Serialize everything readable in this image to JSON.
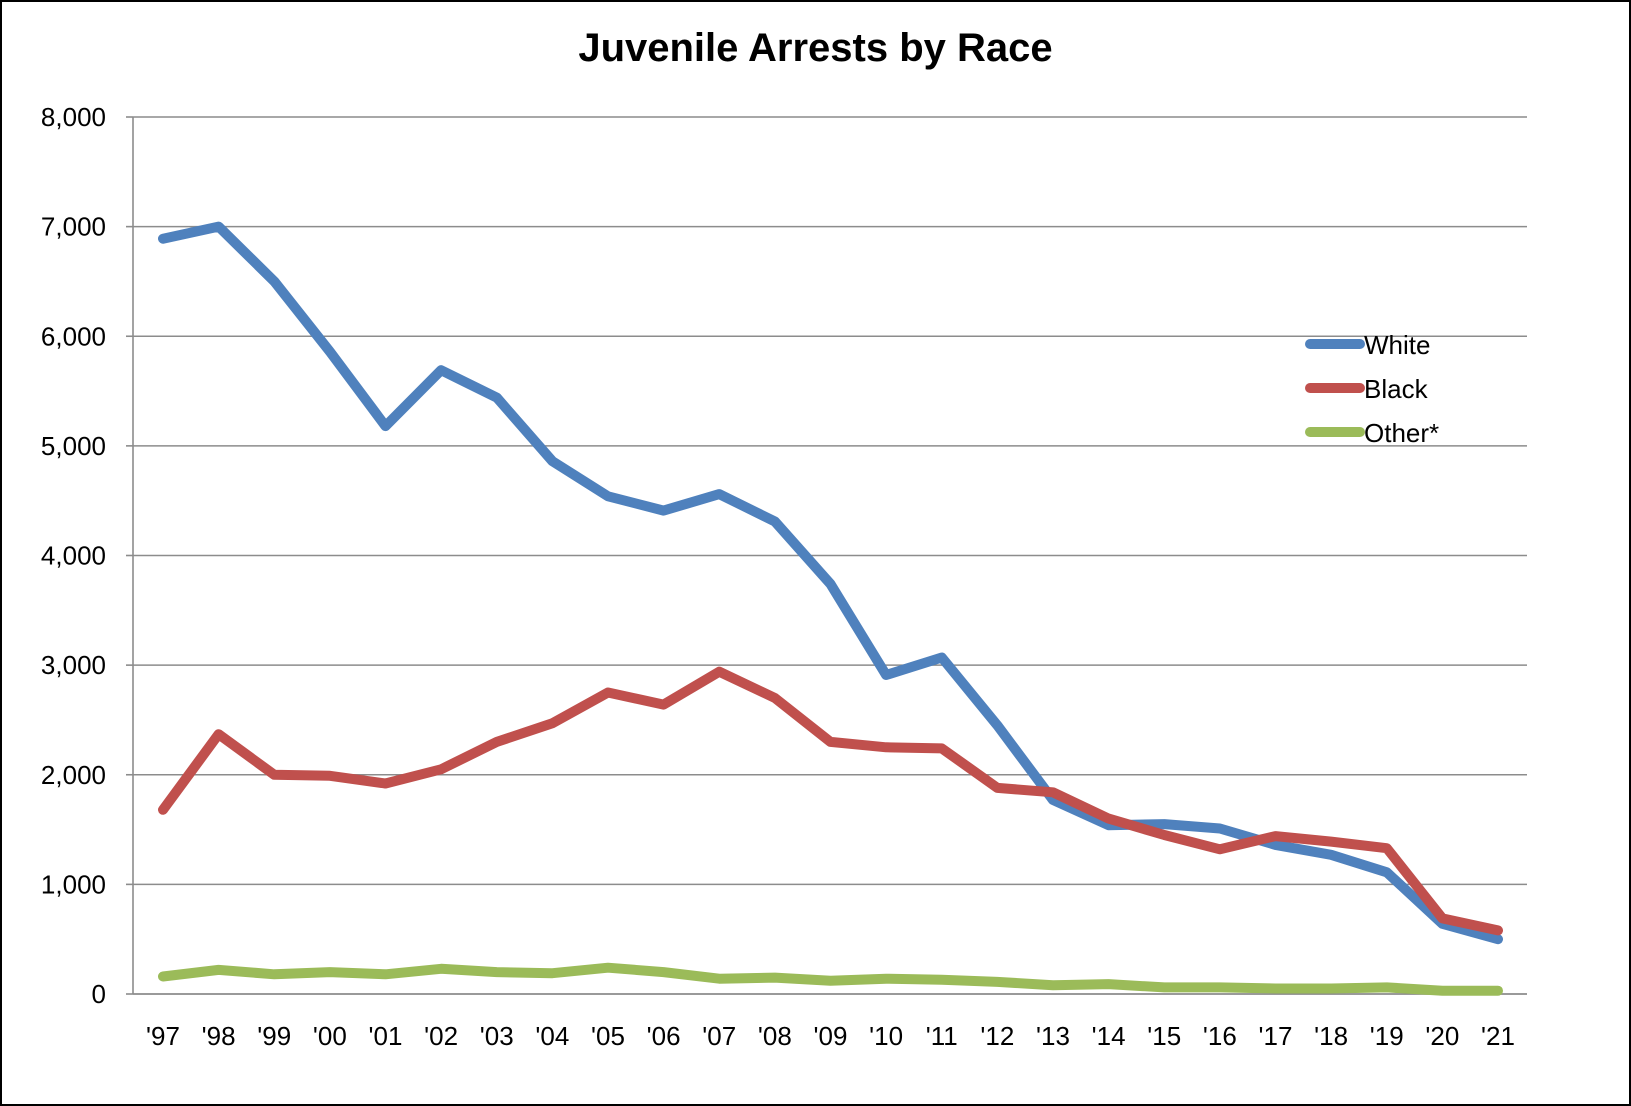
{
  "chart_data": {
    "type": "line",
    "title": "Juvenile Arrests by Race",
    "xlabel": "",
    "ylabel": "",
    "ylim": [
      0,
      8000
    ],
    "yticks": [
      "0",
      "1,000",
      "2,000",
      "3,000",
      "4,000",
      "5,000",
      "6,000",
      "7,000",
      "8,000"
    ],
    "yticks_values": [
      0,
      1000,
      2000,
      3000,
      4000,
      5000,
      6000,
      7000,
      8000
    ],
    "categories": [
      "'97",
      "'98",
      "'99",
      "'00",
      "'01",
      "'02",
      "'03",
      "'04",
      "'05",
      "'06",
      "'07",
      "'08",
      "'09",
      "'10",
      "'11",
      "'12",
      "'13",
      "'14",
      "'15",
      "'16",
      "'17",
      "'18",
      "'19",
      "'20",
      "'21"
    ],
    "grid": true,
    "legend_position": "right",
    "series": [
      {
        "name": "White",
        "color": "#4F81BD",
        "values": [
          6890,
          7000,
          6500,
          5860,
          5180,
          5690,
          5440,
          4860,
          4540,
          4410,
          4560,
          4310,
          3740,
          2910,
          3070,
          2450,
          1770,
          1540,
          1550,
          1510,
          1360,
          1270,
          1110,
          640,
          500
        ]
      },
      {
        "name": "Black",
        "color": "#C0504D",
        "values": [
          1680,
          2370,
          2000,
          1990,
          1920,
          2050,
          2300,
          2470,
          2750,
          2640,
          2940,
          2700,
          2300,
          2250,
          2240,
          1880,
          1840,
          1600,
          1450,
          1320,
          1440,
          1390,
          1330,
          690,
          580
        ]
      },
      {
        "name": "Other*",
        "color": "#9BBB59",
        "values": [
          160,
          220,
          180,
          200,
          180,
          230,
          200,
          190,
          240,
          200,
          140,
          150,
          120,
          140,
          130,
          110,
          80,
          90,
          60,
          60,
          50,
          50,
          60,
          30,
          30
        ]
      }
    ]
  },
  "colors": {
    "gridline": "#8c8c8c",
    "axis": "#8c8c8c",
    "background": "#ffffff",
    "frame": "#000000"
  }
}
